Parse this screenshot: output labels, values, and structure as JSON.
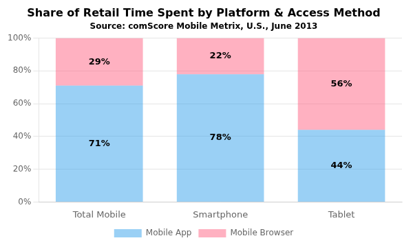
{
  "chart_data": {
    "type": "bar",
    "title": "Share of Retail Time Spent by Platform & Access Method",
    "subtitle": "Source: comScore Mobile Metrix, U.S., June 2013",
    "categories": [
      "Total Mobile",
      "Smartphone",
      "Tablet"
    ],
    "series": [
      {
        "name": "Mobile App",
        "values": [
          71,
          78,
          44
        ],
        "value_labels": [
          "71%",
          "78%",
          "44%"
        ]
      },
      {
        "name": "Mobile Browser",
        "values": [
          29,
          22,
          56
        ],
        "value_labels": [
          "29%",
          "22%",
          "56%"
        ]
      }
    ],
    "stacked": true,
    "data_labels": true,
    "ylim": [
      0,
      100
    ],
    "yticks": [
      {
        "value": 0,
        "label": "0%"
      },
      {
        "value": 20,
        "label": "20%"
      },
      {
        "value": 40,
        "label": "40%"
      },
      {
        "value": 60,
        "label": "60%"
      },
      {
        "value": 80,
        "label": "80%"
      },
      {
        "value": 100,
        "label": "100%"
      }
    ],
    "grid": true,
    "legend": "bottom"
  }
}
